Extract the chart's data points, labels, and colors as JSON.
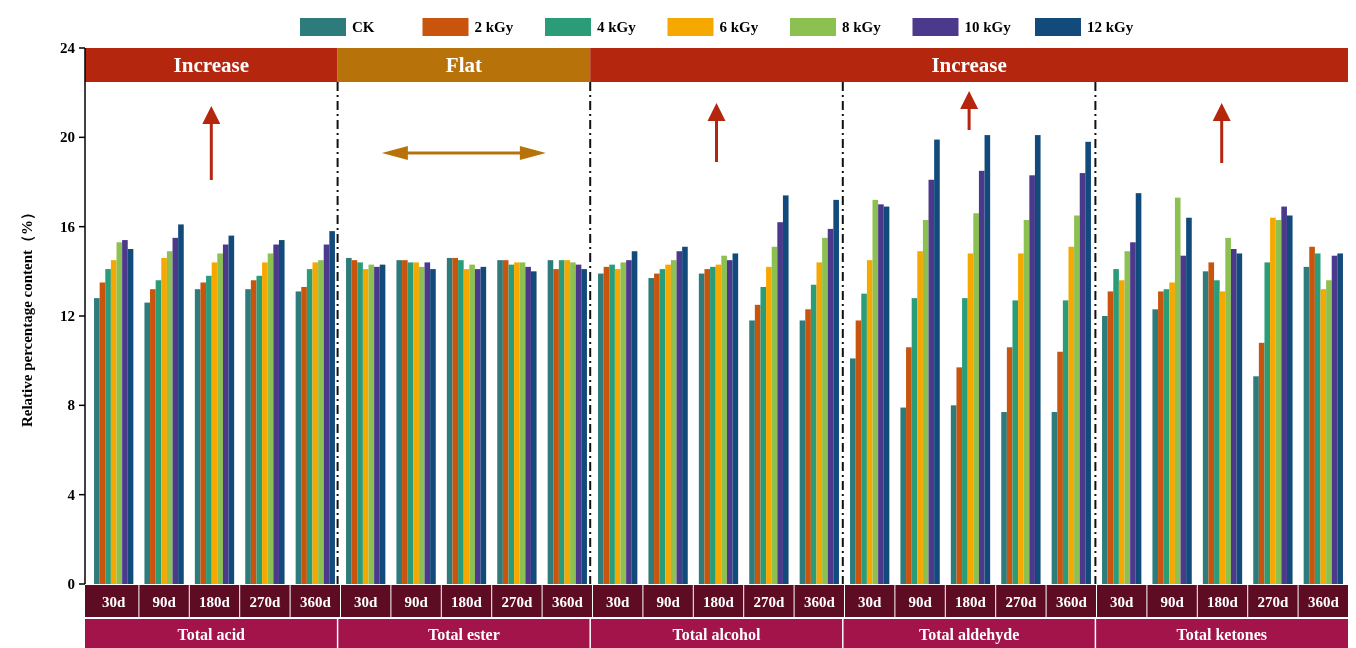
{
  "chart_data": {
    "type": "bar",
    "ylabel": "Relative percentage content（%）",
    "categories": [
      "30d",
      "90d",
      "180d",
      "270d",
      "360d",
      "30d",
      "90d",
      "180d",
      "270d",
      "360d",
      "30d",
      "90d",
      "180d",
      "270d",
      "360d",
      "30d",
      "90d",
      "180d",
      "270d",
      "360d",
      "30d",
      "90d",
      "180d",
      "270d",
      "360d"
    ],
    "series": [
      {
        "name": "CK",
        "color": "#2e7b7b",
        "values": [
          12.8,
          12.6,
          13.2,
          13.2,
          13.1,
          14.6,
          14.5,
          14.6,
          14.5,
          14.5,
          13.9,
          13.7,
          13.9,
          11.8,
          11.8,
          10.1,
          7.9,
          8.0,
          7.7,
          7.7,
          12.0,
          12.3,
          14.0,
          9.3,
          14.2
        ]
      },
      {
        "name": "2 kGy",
        "color": "#c8540e",
        "values": [
          13.5,
          13.2,
          13.5,
          13.6,
          13.3,
          14.5,
          14.5,
          14.6,
          14.5,
          14.1,
          14.2,
          13.9,
          14.1,
          12.5,
          12.3,
          11.8,
          10.6,
          9.7,
          10.6,
          10.4,
          13.1,
          13.1,
          14.4,
          10.8,
          15.1
        ]
      },
      {
        "name": "4 kGy",
        "color": "#2a9d78",
        "values": [
          14.1,
          13.6,
          13.8,
          13.8,
          14.1,
          14.4,
          14.4,
          14.5,
          14.3,
          14.5,
          14.3,
          14.1,
          14.2,
          13.3,
          13.4,
          13.0,
          12.8,
          12.8,
          12.7,
          12.7,
          14.1,
          13.2,
          13.6,
          14.4,
          14.8
        ]
      },
      {
        "name": "6 kGy",
        "color": "#f5a800",
        "values": [
          14.5,
          14.6,
          14.4,
          14.4,
          14.4,
          14.1,
          14.4,
          14.1,
          14.4,
          14.5,
          14.1,
          14.3,
          14.3,
          14.2,
          14.4,
          14.5,
          14.9,
          14.8,
          14.8,
          15.1,
          13.6,
          13.5,
          13.1,
          16.4,
          13.2
        ]
      },
      {
        "name": "8 kGy",
        "color": "#8cc152",
        "values": [
          15.3,
          14.9,
          14.8,
          14.8,
          14.5,
          14.3,
          14.2,
          14.3,
          14.4,
          14.4,
          14.4,
          14.5,
          14.7,
          15.1,
          15.5,
          17.2,
          16.3,
          16.6,
          16.3,
          16.5,
          14.9,
          17.3,
          15.5,
          16.3,
          13.6
        ]
      },
      {
        "name": "10 kGy",
        "color": "#4b3a8c",
        "values": [
          15.4,
          15.5,
          15.2,
          15.2,
          15.2,
          14.2,
          14.4,
          14.1,
          14.2,
          14.3,
          14.5,
          14.9,
          14.5,
          16.2,
          15.9,
          17.0,
          18.1,
          18.5,
          18.3,
          18.4,
          15.3,
          14.7,
          15.0,
          16.9,
          14.7
        ]
      },
      {
        "name": "12 kGy",
        "color": "#134a7c",
        "values": [
          15.0,
          16.1,
          15.6,
          15.4,
          15.8,
          14.3,
          14.1,
          14.2,
          14.0,
          14.1,
          14.9,
          15.1,
          14.8,
          17.4,
          17.2,
          16.9,
          19.9,
          20.1,
          20.1,
          19.8,
          17.5,
          16.4,
          14.8,
          16.5,
          14.8
        ]
      }
    ],
    "ylim": [
      0,
      24
    ],
    "yticks": [
      0,
      4,
      8,
      12,
      16,
      20,
      24
    ],
    "legend": "top",
    "annotations": [
      "Increase",
      "Flat",
      "Increase",
      "Total acid",
      "Total ester",
      "Total alcohol",
      "Total aldehyde",
      "Total ketones"
    ]
  }
}
